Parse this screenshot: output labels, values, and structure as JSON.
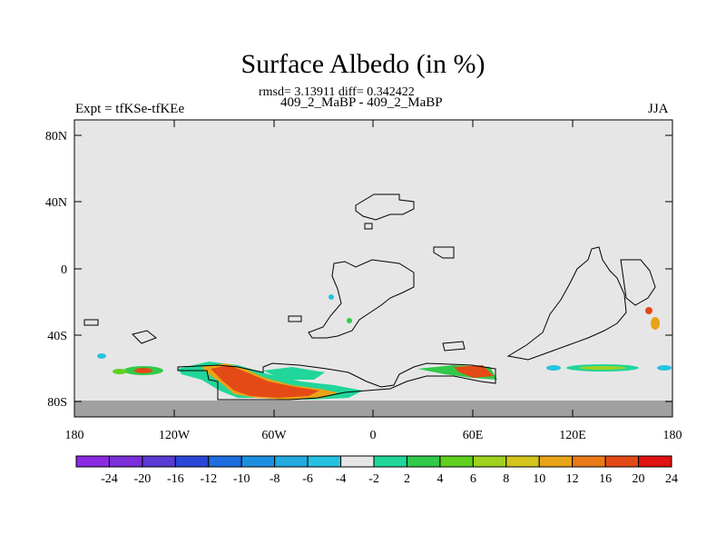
{
  "header": {
    "title": "Surface Albedo (in %)",
    "stats": "rmsd= 3.13911 diff= 0.342422",
    "subtitle": "409_2_MaBP - 409_2_MaBP",
    "left_label": "Expt = tfKSe-tfKEe",
    "right_label": "JJA"
  },
  "map": {
    "x_ticks": [
      "180",
      "120W",
      "60W",
      "0",
      "60E",
      "120E",
      "180"
    ],
    "y_ticks": [
      "80N",
      "40N",
      "0",
      "40S",
      "80S"
    ],
    "background_color": "#e6e6e6",
    "missing_color": "#a0a0a0"
  },
  "colorbar": {
    "labels": [
      "-24",
      "-20",
      "-16",
      "-12",
      "-10",
      "-8",
      "-6",
      "-4",
      "-2",
      "2",
      "4",
      "6",
      "8",
      "10",
      "12",
      "16",
      "20",
      "24"
    ],
    "colors": [
      "#8a2be2",
      "#7a2fd8",
      "#5a3bd4",
      "#2a47d8",
      "#1f6ee0",
      "#1e8fe0",
      "#22a9e0",
      "#26c3e0",
      "#e6e6e6",
      "#20d69a",
      "#31c94a",
      "#5fd020",
      "#9fd21f",
      "#d3c51b",
      "#e8a418",
      "#ea7a18",
      "#e44a16",
      "#e01212"
    ]
  }
}
